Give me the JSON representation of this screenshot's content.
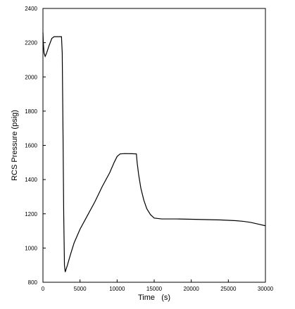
{
  "chart_data": {
    "type": "line",
    "xlabel": "Time   (s)",
    "ylabel": "RCS Pressure (psig)",
    "xlim": [
      0,
      30000
    ],
    "ylim": [
      800,
      2400
    ],
    "x_ticks": [
      0,
      5000,
      10000,
      15000,
      20000,
      25000,
      30000
    ],
    "y_ticks": [
      800,
      1000,
      1200,
      1400,
      1600,
      1800,
      2000,
      2200,
      2400
    ],
    "x_tick_labels": [
      "0",
      "5000",
      "10000",
      "15000",
      "20000",
      "25000",
      "30000"
    ],
    "y_tick_labels": [
      "800",
      "1000",
      "1200",
      "1400",
      "1600",
      "1800",
      "2000",
      "2200",
      "2400"
    ],
    "grid": false,
    "series": [
      {
        "color": "#000000",
        "points": [
          [
            0,
            2260
          ],
          [
            50,
            2200
          ],
          [
            150,
            2140
          ],
          [
            300,
            2120
          ],
          [
            500,
            2140
          ],
          [
            800,
            2180
          ],
          [
            1200,
            2225
          ],
          [
            1500,
            2235
          ],
          [
            2000,
            2235
          ],
          [
            2500,
            2235
          ],
          [
            2600,
            2140
          ],
          [
            2700,
            1700
          ],
          [
            2800,
            1200
          ],
          [
            2900,
            900
          ],
          [
            3000,
            860
          ],
          [
            3300,
            900
          ],
          [
            3700,
            960
          ],
          [
            4200,
            1030
          ],
          [
            5000,
            1110
          ],
          [
            6000,
            1190
          ],
          [
            7000,
            1270
          ],
          [
            8000,
            1360
          ],
          [
            9000,
            1440
          ],
          [
            9600,
            1500
          ],
          [
            10000,
            1535
          ],
          [
            10400,
            1550
          ],
          [
            11000,
            1552
          ],
          [
            12000,
            1551
          ],
          [
            12600,
            1550
          ],
          [
            12700,
            1500
          ],
          [
            12900,
            1430
          ],
          [
            13200,
            1350
          ],
          [
            13600,
            1280
          ],
          [
            14000,
            1230
          ],
          [
            14500,
            1195
          ],
          [
            15000,
            1175
          ],
          [
            16000,
            1170
          ],
          [
            18000,
            1170
          ],
          [
            20000,
            1168
          ],
          [
            22000,
            1166
          ],
          [
            24000,
            1164
          ],
          [
            26000,
            1160
          ],
          [
            27000,
            1156
          ],
          [
            28000,
            1150
          ],
          [
            29000,
            1140
          ],
          [
            30000,
            1130
          ]
        ]
      }
    ]
  }
}
